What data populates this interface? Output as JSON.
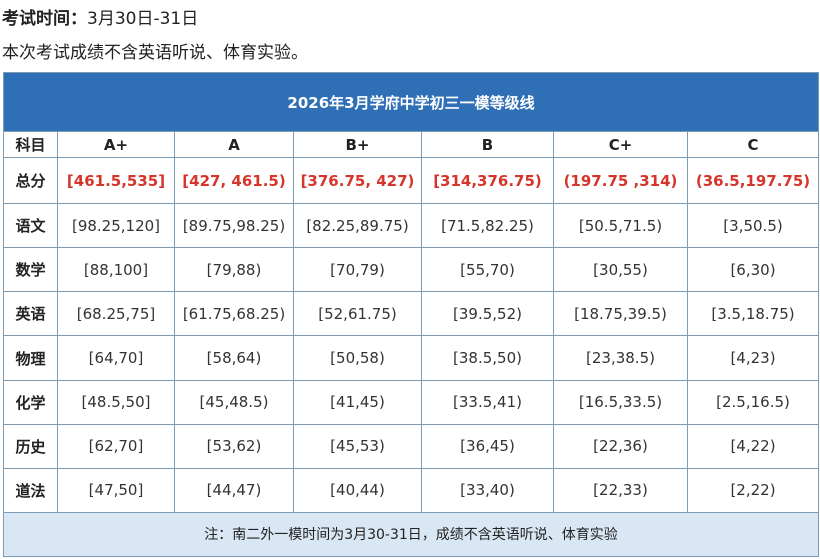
{
  "intro": {
    "label": "考试时间：",
    "value": "3月30日-31日",
    "note": "本次考试成绩不含英语听说、体育实验。"
  },
  "table": {
    "title": "2026年3月学府中学初三一模等级线",
    "header": [
      "科目",
      "A+",
      "A",
      "B+",
      "B",
      "C+",
      "C"
    ],
    "rows": [
      {
        "subject": "总分",
        "values": [
          "[461.5,535]",
          "[427, 461.5)",
          "[376.75, 427)",
          "[314,376.75)",
          "(197.75 ,314)",
          "(36.5,197.75)"
        ]
      },
      {
        "subject": "语文",
        "values": [
          "[98.25,120]",
          "[89.75,98.25)",
          "[82.25,89.75)",
          "[71.5,82.25)",
          "[50.5,71.5)",
          "[3,50.5)"
        ]
      },
      {
        "subject": "数学",
        "values": [
          "[88,100]",
          "[79,88)",
          "[70,79)",
          "[55,70)",
          "[30,55)",
          "[6,30)"
        ]
      },
      {
        "subject": "英语",
        "values": [
          "[68.25,75]",
          "[61.75,68.25)",
          "[52,61.75)",
          "[39.5,52)",
          "[18.75,39.5)",
          "[3.5,18.75)"
        ]
      },
      {
        "subject": "物理",
        "values": [
          "[64,70]",
          "[58,64)",
          "[50,58)",
          "[38.5,50)",
          "[23,38.5)",
          "[4,23)"
        ]
      },
      {
        "subject": "化学",
        "values": [
          "[48.5,50]",
          "[45,48.5)",
          "[41,45)",
          "[33.5,41)",
          "[16.5,33.5)",
          "[2.5,16.5)"
        ]
      },
      {
        "subject": "历史",
        "values": [
          "[62,70]",
          "[53,62)",
          "[45,53)",
          "[36,45)",
          "[22,36)",
          "[4,22)"
        ]
      },
      {
        "subject": "道法",
        "values": [
          "[47,50]",
          "[44,47)",
          "[40,44)",
          "[33,40)",
          "[22,33)",
          "[2,22)"
        ]
      }
    ],
    "footnote": "注：南二外一模时间为3月30-31日，成绩不含英语听说、体育实验"
  },
  "colors": {
    "title_bg": "#2f6fb6",
    "total_text": "#d5352a",
    "footnote_bg": "#d9e6f3",
    "border": "#7f9bb3"
  }
}
